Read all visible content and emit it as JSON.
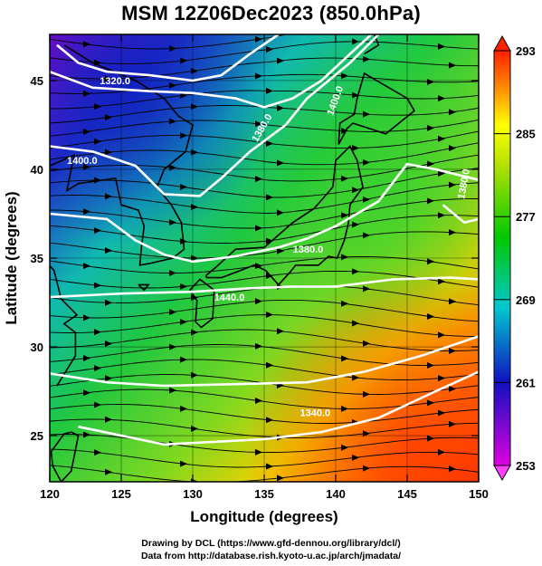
{
  "title": "MSM 12Z06Dec2023 (850.0hPa)",
  "map": {
    "x_axis_label": "Longitude (degrees)",
    "y_axis_label": "Latitude  (degrees)",
    "x_ticks": [
      "120",
      "125",
      "130",
      "135",
      "140",
      "145",
      "150"
    ],
    "y_ticks": [
      "25",
      "30",
      "35",
      "40",
      "45"
    ],
    "lon_range": [
      120,
      150
    ],
    "lat_range": [
      22.4,
      47.6
    ],
    "contour_labels": [
      "1320.0",
      "1400.0",
      "1380.0",
      "1400.0",
      "1380.0",
      "1440.0",
      "1340.0",
      "1380.0"
    ],
    "colorbar": {
      "ticks": [
        "293",
        "285",
        "277",
        "269",
        "261",
        "253"
      ],
      "range": [
        253,
        293
      ],
      "colors": [
        "#c800c8",
        "#0000c8",
        "#00c8c8",
        "#00c800",
        "#ffff00",
        "#ff6400",
        "#ff0000"
      ]
    }
  },
  "credits": {
    "line1": "Drawing by DCL (https://www.gfd-dennou.org/library/dcl/)",
    "line2": "Data from http://database.rish.kyoto-u.ac.jp/arch/jmadata/"
  }
}
